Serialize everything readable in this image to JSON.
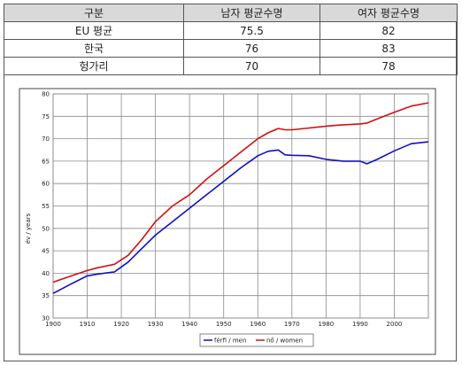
{
  "table": {
    "headers": [
      "구분",
      "남자 평균수명",
      "여자 평균수명"
    ],
    "rows": [
      [
        "EU 평균",
        "75.5",
        "82"
      ],
      [
        "한국",
        "76",
        "83"
      ],
      [
        "헝가리",
        "70",
        "78"
      ]
    ]
  },
  "chart_data": {
    "type": "line",
    "title": "",
    "xlabel": "",
    "ylabel": "év / years",
    "xlim": [
      1900,
      2010
    ],
    "ylim": [
      30,
      80
    ],
    "x_ticks": [
      1900,
      1910,
      1920,
      1930,
      1940,
      1950,
      1960,
      1970,
      1980,
      1990,
      2000
    ],
    "y_ticks": [
      30,
      35,
      40,
      45,
      50,
      55,
      60,
      65,
      70,
      75,
      80
    ],
    "grid": true,
    "legend_position": "bottom",
    "series": [
      {
        "name": "férfi / men",
        "color": "#1010c0",
        "x": [
          1900,
          1905,
          1910,
          1913,
          1918,
          1922,
          1926,
          1930,
          1935,
          1940,
          1945,
          1950,
          1955,
          1960,
          1963,
          1966,
          1968,
          1970,
          1975,
          1980,
          1985,
          1990,
          1992,
          1995,
          2000,
          2005,
          2010
        ],
        "y": [
          35.5,
          37.5,
          39.4,
          39.8,
          40.3,
          42.5,
          45.5,
          48.5,
          51.5,
          54.5,
          57.5,
          60.5,
          63.5,
          66.2,
          67.2,
          67.5,
          66.4,
          66.3,
          66.2,
          65.4,
          65.0,
          65.0,
          64.4,
          65.4,
          67.3,
          68.9,
          69.3
        ]
      },
      {
        "name": "nő / women",
        "color": "#d01010",
        "x": [
          1900,
          1905,
          1910,
          1913,
          1918,
          1922,
          1926,
          1930,
          1935,
          1940,
          1945,
          1950,
          1955,
          1960,
          1963,
          1966,
          1968,
          1970,
          1975,
          1980,
          1985,
          1990,
          1992,
          1995,
          2000,
          2005,
          2010
        ],
        "y": [
          38.0,
          39.3,
          40.6,
          41.2,
          42.0,
          44.0,
          47.5,
          51.5,
          55.0,
          57.5,
          61.0,
          64.0,
          67.0,
          70.0,
          71.3,
          72.3,
          72.0,
          72.0,
          72.4,
          72.8,
          73.1,
          73.3,
          73.5,
          74.4,
          75.9,
          77.3,
          78.0
        ]
      }
    ]
  }
}
